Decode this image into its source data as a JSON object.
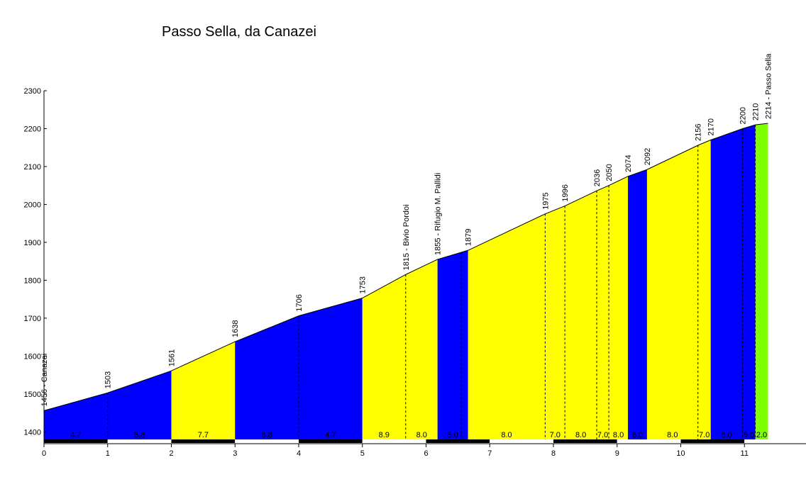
{
  "chart_data": {
    "type": "area",
    "title": "Passo Sella, da Canazei",
    "xlim": [
      0,
      12
    ],
    "ylim": [
      1380,
      2300
    ],
    "x_ticks": [
      0,
      1,
      2,
      3,
      4,
      5,
      6,
      7,
      8,
      9,
      10,
      11
    ],
    "y_ticks": [
      1400,
      1500,
      1600,
      1700,
      1800,
      1900,
      2000,
      2100,
      2200,
      2300
    ],
    "grid": false,
    "colors": {
      "blue": "#0000ff",
      "yellow": "#ffff00",
      "green": "#80ff00"
    },
    "profile": [
      {
        "x": 0,
        "y": 1456,
        "label": "1456 - Canazei"
      },
      {
        "x": 1,
        "y": 1503,
        "label": "1503"
      },
      {
        "x": 2,
        "y": 1561,
        "label": "1561"
      },
      {
        "x": 3,
        "y": 1638,
        "label": "1638"
      },
      {
        "x": 4,
        "y": 1706,
        "label": "1706"
      },
      {
        "x": 5,
        "y": 1753,
        "label": "1753"
      },
      {
        "x": 5.68,
        "y": 1815,
        "label": "1815 - Bivio Pordoi"
      },
      {
        "x": 6.18,
        "y": 1855,
        "label": "1855 - Rifugio M. Pallidi"
      },
      {
        "x": 6.66,
        "y": 1879,
        "label": "1879"
      },
      {
        "x": 7.87,
        "y": 1975,
        "label": "1975"
      },
      {
        "x": 8.18,
        "y": 1996,
        "label": "1996"
      },
      {
        "x": 8.68,
        "y": 2036,
        "label": "2036"
      },
      {
        "x": 8.87,
        "y": 2050,
        "label": "2050"
      },
      {
        "x": 9.17,
        "y": 2074,
        "label": "2074"
      },
      {
        "x": 9.47,
        "y": 2092,
        "label": "2092"
      },
      {
        "x": 10.27,
        "y": 2156,
        "label": "2156"
      },
      {
        "x": 10.47,
        "y": 2170,
        "label": "2170"
      },
      {
        "x": 10.97,
        "y": 2200,
        "label": "2200"
      },
      {
        "x": 11.17,
        "y": 2210,
        "label": "2210"
      },
      {
        "x": 11.37,
        "y": 2214,
        "label": "2214 - Passo Sella"
      }
    ],
    "segments": [
      {
        "x0": 0,
        "x1": 2,
        "color": "blue"
      },
      {
        "x0": 2,
        "x1": 3,
        "color": "yellow"
      },
      {
        "x0": 3,
        "x1": 5,
        "color": "blue"
      },
      {
        "x0": 5,
        "x1": 6.18,
        "color": "yellow"
      },
      {
        "x0": 6.18,
        "x1": 6.66,
        "color": "blue"
      },
      {
        "x0": 6.66,
        "x1": 9.17,
        "color": "yellow"
      },
      {
        "x0": 9.17,
        "x1": 9.47,
        "color": "blue"
      },
      {
        "x0": 9.47,
        "x1": 10.47,
        "color": "yellow"
      },
      {
        "x0": 10.47,
        "x1": 11.17,
        "color": "blue"
      },
      {
        "x0": 11.17,
        "x1": 11.37,
        "color": "green"
      }
    ],
    "dashed_markers": [
      1,
      4,
      5.68,
      6.55,
      7.87,
      8.18,
      8.68,
      8.87,
      10.27,
      10.97,
      11.17
    ],
    "gradients": [
      {
        "x0": 0,
        "x1": 1,
        "value": "4.7"
      },
      {
        "x0": 1,
        "x1": 2,
        "value": "5.8"
      },
      {
        "x0": 2,
        "x1": 3,
        "value": "7.7"
      },
      {
        "x0": 3,
        "x1": 4,
        "value": "6.8"
      },
      {
        "x0": 4,
        "x1": 5,
        "value": "4.7"
      },
      {
        "x0": 5,
        "x1": 5.68,
        "value": "8.9"
      },
      {
        "x0": 5.68,
        "x1": 6.18,
        "value": "8.0"
      },
      {
        "x0": 6.18,
        "x1": 6.66,
        "value": "5.0"
      },
      {
        "x0": 6.66,
        "x1": 7.87,
        "value": "8.0"
      },
      {
        "x0": 7.87,
        "x1": 8.18,
        "value": "7.0"
      },
      {
        "x0": 8.18,
        "x1": 8.68,
        "value": "8.0"
      },
      {
        "x0": 8.68,
        "x1": 8.87,
        "value": "7.0"
      },
      {
        "x0": 8.87,
        "x1": 9.17,
        "value": "8.0"
      },
      {
        "x0": 9.17,
        "x1": 9.47,
        "value": "6.0"
      },
      {
        "x0": 9.47,
        "x1": 10.27,
        "value": "8.0"
      },
      {
        "x0": 10.27,
        "x1": 10.47,
        "value": "7.0"
      },
      {
        "x0": 10.47,
        "x1": 10.97,
        "value": "6.0"
      },
      {
        "x0": 10.97,
        "x1": 11.17,
        "value": "5.0"
      },
      {
        "x0": 11.17,
        "x1": 11.37,
        "value": "2.0"
      }
    ]
  }
}
